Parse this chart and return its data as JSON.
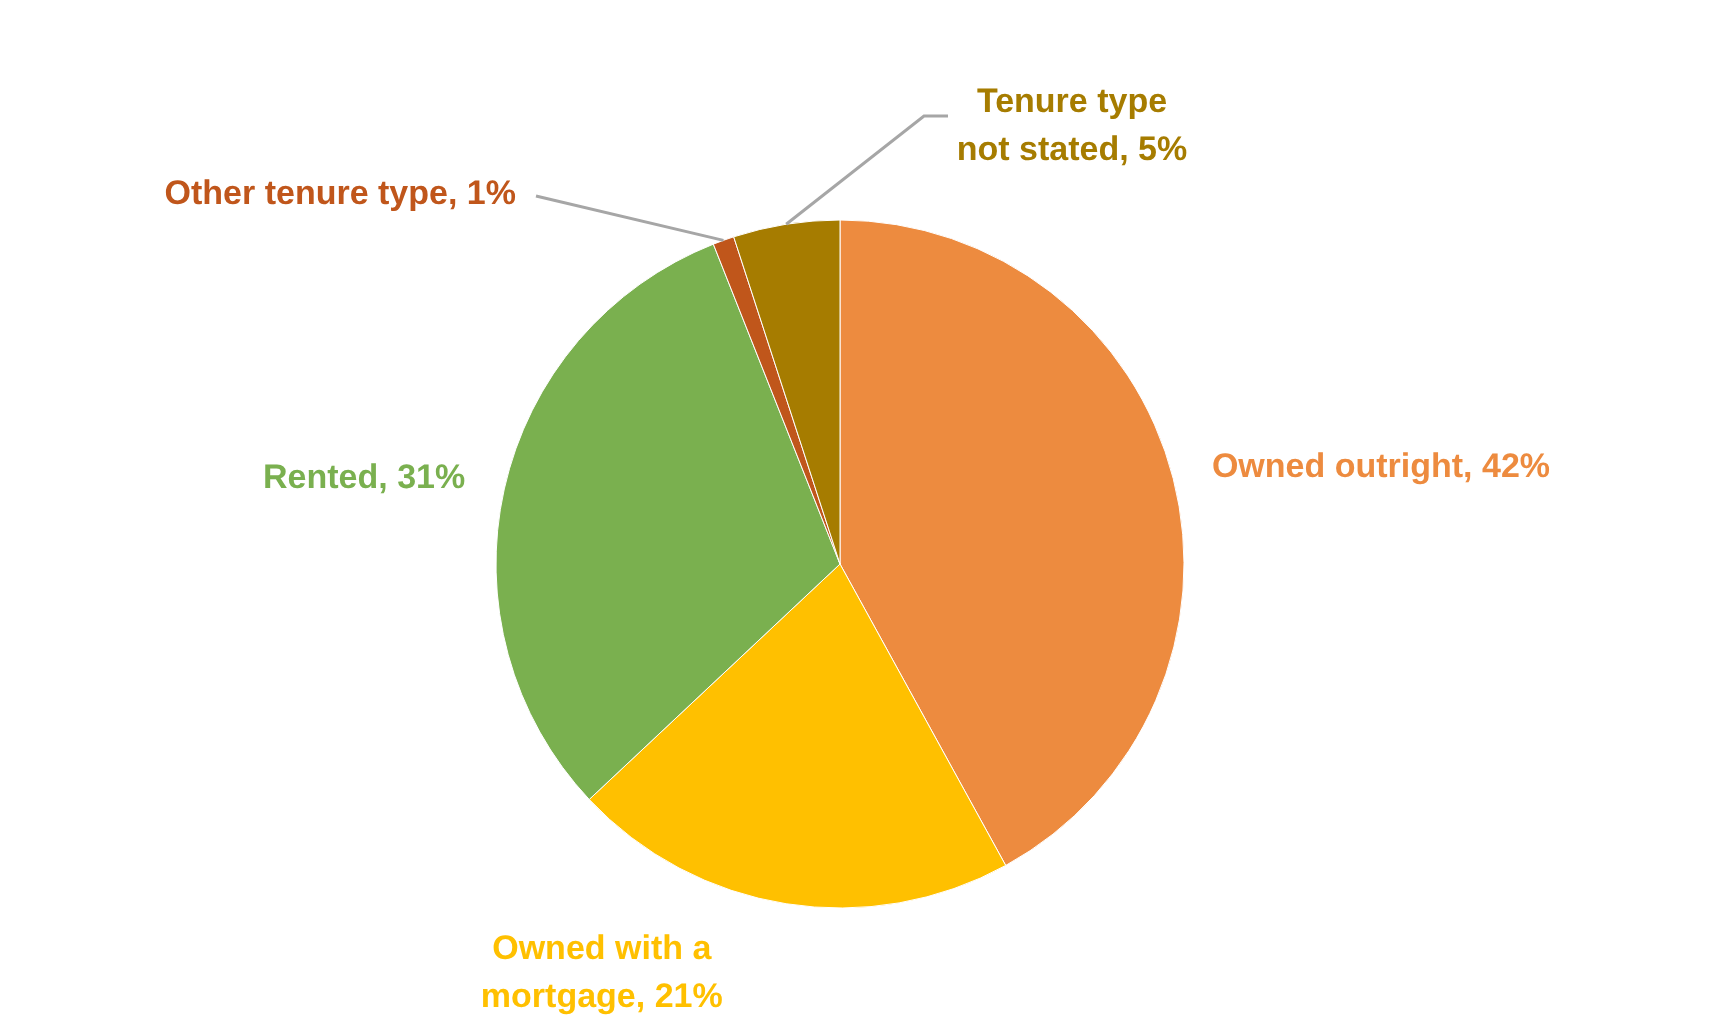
{
  "chart_data": {
    "type": "pie",
    "categories": [
      "Owned outright",
      "Owned with a mortgage",
      "Rented",
      "Other tenure type",
      "Tenure type not stated"
    ],
    "values": [
      42,
      21,
      31,
      1,
      5
    ],
    "value_labels": [
      "42%",
      "21%",
      "31%",
      "1%",
      "5%"
    ],
    "colors": [
      "#ed8b3f",
      "#ffc000",
      "#7ab04f",
      "#c0561b",
      "#a67c00"
    ]
  }
}
